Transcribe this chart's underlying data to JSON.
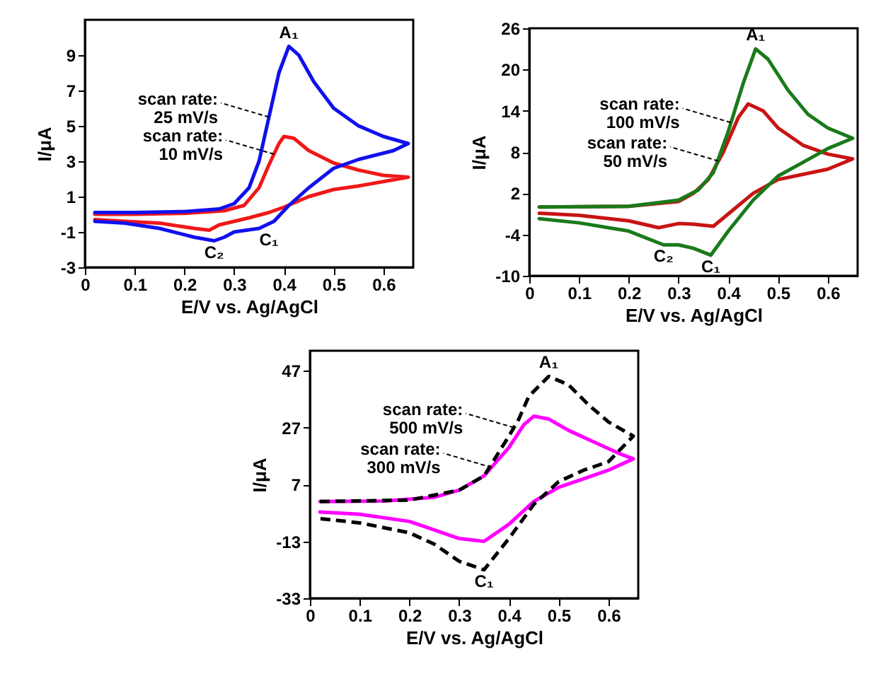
{
  "chart_data": [
    {
      "type": "line",
      "xlabel": "E/V vs. Ag/AgCl",
      "ylabel": "I/μA",
      "xlim": [
        0,
        0.66
      ],
      "xticks": [
        0,
        0.1,
        0.2,
        0.3,
        0.4,
        0.5,
        0.6
      ],
      "ylim": [
        -3,
        11
      ],
      "yticks": [
        -3,
        -1,
        1,
        3,
        5,
        7,
        9
      ],
      "series": [
        {
          "color": "#f01818",
          "x": [
            0.02,
            0.1,
            0.2,
            0.28,
            0.32,
            0.35,
            0.37,
            0.39,
            0.4,
            0.42,
            0.45,
            0.5,
            0.55,
            0.6,
            0.65,
            0.63,
            0.55,
            0.5,
            0.45,
            0.4,
            0.37,
            0.33,
            0.3,
            0.27,
            0.25,
            0.22,
            0.15,
            0.08,
            0.02
          ],
          "values": [
            0,
            0,
            0.05,
            0.2,
            0.5,
            1.5,
            2.8,
            4.0,
            4.4,
            4.3,
            3.6,
            2.9,
            2.5,
            2.2,
            2.1,
            2.0,
            1.6,
            1.4,
            1.0,
            0.4,
            0.1,
            -0.2,
            -0.4,
            -0.6,
            -0.9,
            -0.8,
            -0.5,
            -0.4,
            -0.3
          ]
        },
        {
          "color": "#1010ee",
          "x": [
            0.02,
            0.1,
            0.2,
            0.27,
            0.3,
            0.33,
            0.35,
            0.37,
            0.39,
            0.41,
            0.43,
            0.46,
            0.5,
            0.55,
            0.6,
            0.65,
            0.62,
            0.55,
            0.5,
            0.45,
            0.41,
            0.38,
            0.35,
            0.3,
            0.28,
            0.26,
            0.22,
            0.15,
            0.08,
            0.02
          ],
          "values": [
            0.1,
            0.1,
            0.15,
            0.3,
            0.6,
            1.5,
            3,
            5.5,
            8,
            9.5,
            9,
            7.5,
            6,
            5,
            4.4,
            4.0,
            3.6,
            3.1,
            2.6,
            1.5,
            0.5,
            -0.4,
            -0.8,
            -1.0,
            -1.3,
            -1.5,
            -1.3,
            -0.8,
            -0.5,
            -0.4
          ]
        }
      ],
      "annotations": [
        {
          "text": "scan rate:\n25 mV/s",
          "x": 0.37,
          "y": 5.5
        },
        {
          "text": "scan rate:\n10 mV/s",
          "x": 0.38,
          "y": 3.4
        },
        {
          "text": "A₁",
          "x": 0.41,
          "y": 9.5
        },
        {
          "text": "C₂",
          "x": 0.26,
          "y": -1.5
        },
        {
          "text": "C₁",
          "x": 0.37,
          "y": -0.8
        }
      ]
    },
    {
      "type": "line",
      "xlabel": "E/V vs. Ag/AgCl",
      "ylabel": "I/μA",
      "xlim": [
        0,
        0.66
      ],
      "xticks": [
        0,
        0.1,
        0.2,
        0.3,
        0.4,
        0.5,
        0.6
      ],
      "ylim": [
        -10,
        26
      ],
      "yticks": [
        -10,
        -4,
        2,
        8,
        14,
        20,
        26
      ],
      "series": [
        {
          "color": "#c81414",
          "x": [
            0.02,
            0.2,
            0.3,
            0.33,
            0.36,
            0.39,
            0.42,
            0.44,
            0.47,
            0.5,
            0.55,
            0.6,
            0.65,
            0.6,
            0.5,
            0.45,
            0.4,
            0.37,
            0.33,
            0.3,
            0.26,
            0.2,
            0.1,
            0.02
          ],
          "values": [
            0,
            0.1,
            0.8,
            2,
            4,
            8,
            13,
            15,
            14,
            11.5,
            9,
            7.7,
            7,
            5.5,
            4,
            2,
            -1,
            -2.8,
            -2.5,
            -2.4,
            -3,
            -2,
            -1.2,
            -0.9
          ]
        },
        {
          "color": "#1a7a1a",
          "x": [
            0.02,
            0.2,
            0.3,
            0.34,
            0.37,
            0.4,
            0.43,
            0.455,
            0.48,
            0.52,
            0.56,
            0.6,
            0.65,
            0.6,
            0.55,
            0.5,
            0.45,
            0.4,
            0.365,
            0.33,
            0.3,
            0.27,
            0.2,
            0.1,
            0.02
          ],
          "values": [
            0,
            0.1,
            1,
            2.5,
            5,
            11,
            18,
            23,
            21.5,
            17,
            13.5,
            11.5,
            10,
            8.5,
            6.5,
            4.5,
            1,
            -3.5,
            -7,
            -6,
            -5.5,
            -5.5,
            -3.5,
            -2.3,
            -1.7
          ]
        }
      ],
      "annotations": [
        {
          "text": "scan rate:\n100 mV/s",
          "x": 0.405,
          "y": 12.3
        },
        {
          "text": "scan rate:\n50 mV/s",
          "x": 0.38,
          "y": 6.7
        },
        {
          "text": "A₁",
          "x": 0.455,
          "y": 23
        },
        {
          "text": "C₂",
          "x": 0.27,
          "y": -5.5
        },
        {
          "text": "C₁",
          "x": 0.365,
          "y": -7
        }
      ]
    },
    {
      "type": "line",
      "xlabel": "E/V vs. Ag/AgCl",
      "ylabel": "I/μA",
      "xlim": [
        0,
        0.66
      ],
      "xticks": [
        0,
        0.1,
        0.2,
        0.3,
        0.4,
        0.5,
        0.6
      ],
      "ylim": [
        -33,
        54
      ],
      "yticks": [
        -33,
        -13,
        7,
        27,
        47
      ],
      "series": [
        {
          "color": "#ff00ff",
          "x": [
            0.02,
            0.15,
            0.25,
            0.3,
            0.35,
            0.37,
            0.4,
            0.43,
            0.45,
            0.48,
            0.52,
            0.57,
            0.62,
            0.65,
            0.6,
            0.55,
            0.5,
            0.45,
            0.4,
            0.35,
            0.3,
            0.25,
            0.2,
            0.1,
            0.02
          ],
          "values": [
            1,
            1.2,
            2.5,
            5,
            10,
            14,
            20,
            28,
            31,
            30,
            26,
            22,
            18,
            16,
            12,
            9,
            6,
            1,
            -7,
            -13,
            -12,
            -9,
            -6,
            -3.5,
            -2.7
          ]
        },
        {
          "color": "#000000",
          "line_style": "dashed",
          "x": [
            0.02,
            0.2,
            0.3,
            0.35,
            0.4,
            0.42,
            0.44,
            0.48,
            0.52,
            0.56,
            0.6,
            0.65,
            0.6,
            0.55,
            0.5,
            0.45,
            0.4,
            0.35,
            0.3,
            0.25,
            0.2,
            0.1,
            0.02
          ],
          "values": [
            1,
            1.5,
            5,
            10,
            24,
            30,
            38,
            45,
            42,
            35,
            29,
            24,
            15,
            12,
            8,
            0,
            -12,
            -23,
            -20,
            -14,
            -10,
            -6.5,
            -5
          ]
        }
      ],
      "annotations": [
        {
          "text": "scan rate:\n500 mV/s",
          "x": 0.41,
          "y": 27
        },
        {
          "text": "scan rate:\n300 mV/s",
          "x": 0.365,
          "y": 13
        },
        {
          "text": "A₁",
          "x": 0.48,
          "y": 45
        },
        {
          "text": "C₁",
          "x": 0.35,
          "y": -23
        }
      ]
    }
  ]
}
